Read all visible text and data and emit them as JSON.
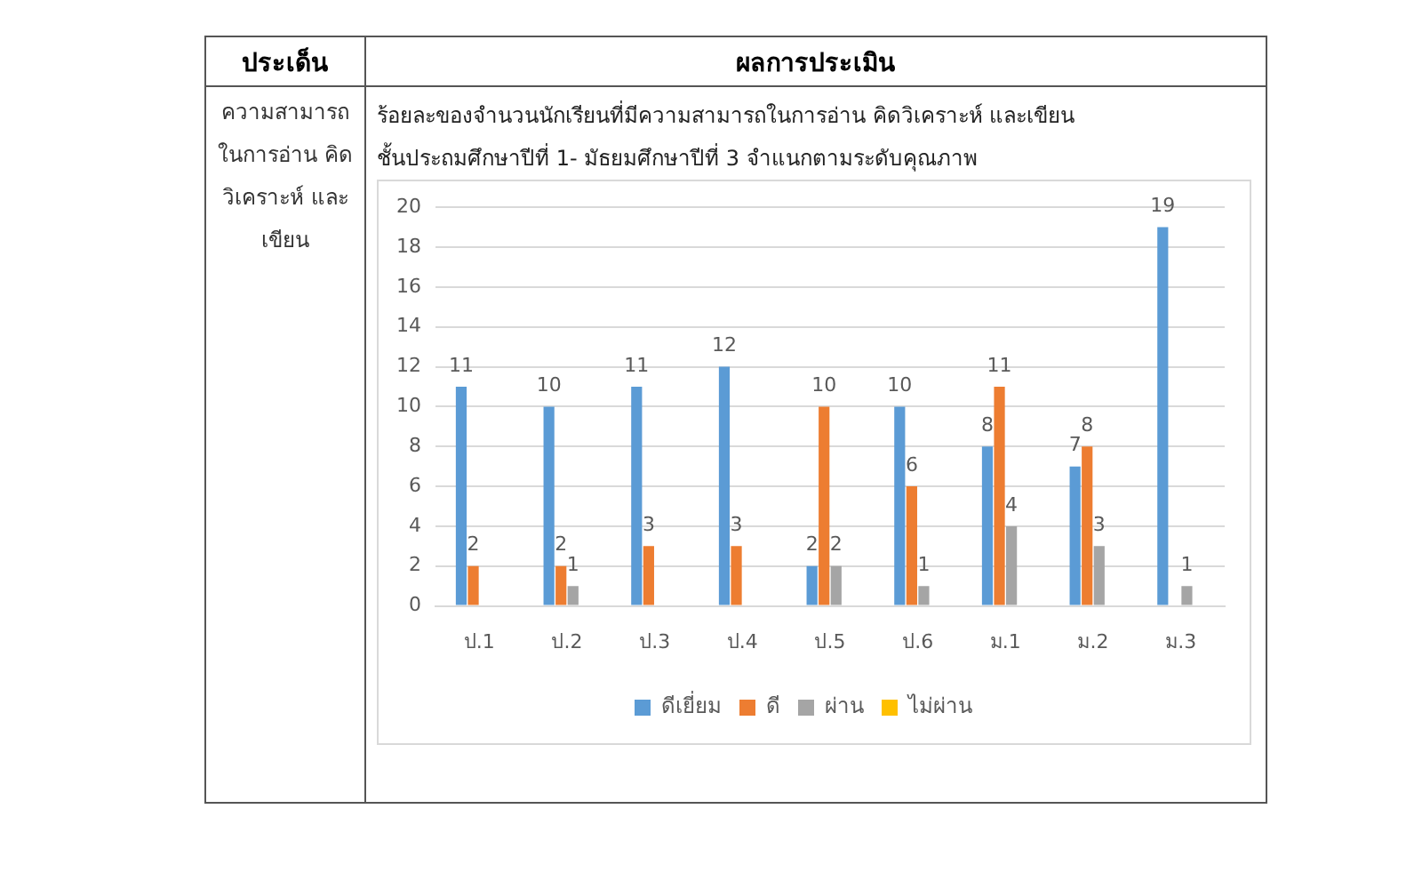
{
  "chart_data": {
    "type": "bar",
    "title": "ร้อยละของจำนวนนักเรียนที่มีความสามารถในการอ่าน คิดวิเคราะห์ และเขียน",
    "subtitle": "ชั้นประถมศึกษาปีที่ 1- มัธยมศึกษาปีที่ 3 จำแนกตามระดับคุณภาพ",
    "annotations": [
      "ประเด็น",
      "ผลการประเมิน",
      "ความสามารถในการอ่าน คิดวิเคราะห์ และเขียน"
    ],
    "categories": [
      "ป.1",
      "ป.2",
      "ป.3",
      "ป.4",
      "ป.5",
      "ป.6",
      "ม.1",
      "ม.2",
      "ม.3"
    ],
    "series": [
      {
        "name": "ดีเยี่ยม",
        "color": "#5b9bd5",
        "values": [
          11,
          10,
          11,
          12,
          2,
          10,
          8,
          7,
          19
        ]
      },
      {
        "name": "ดี",
        "color": "#ed7d31",
        "values": [
          2,
          2,
          3,
          3,
          10,
          6,
          11,
          8,
          null
        ]
      },
      {
        "name": "ผ่าน",
        "color": "#a5a5a5",
        "values": [
          null,
          1,
          null,
          null,
          2,
          1,
          4,
          3,
          1
        ]
      },
      {
        "name": "ไม่ผ่าน",
        "color": "#ffc000",
        "values": [
          null,
          null,
          null,
          null,
          null,
          null,
          null,
          null,
          null
        ]
      }
    ],
    "ylim": [
      0,
      20
    ],
    "yticks": [
      0,
      2,
      4,
      6,
      8,
      10,
      12,
      14,
      16,
      18,
      20
    ],
    "grid": "y",
    "legend": "bottom",
    "data_labels": true
  }
}
